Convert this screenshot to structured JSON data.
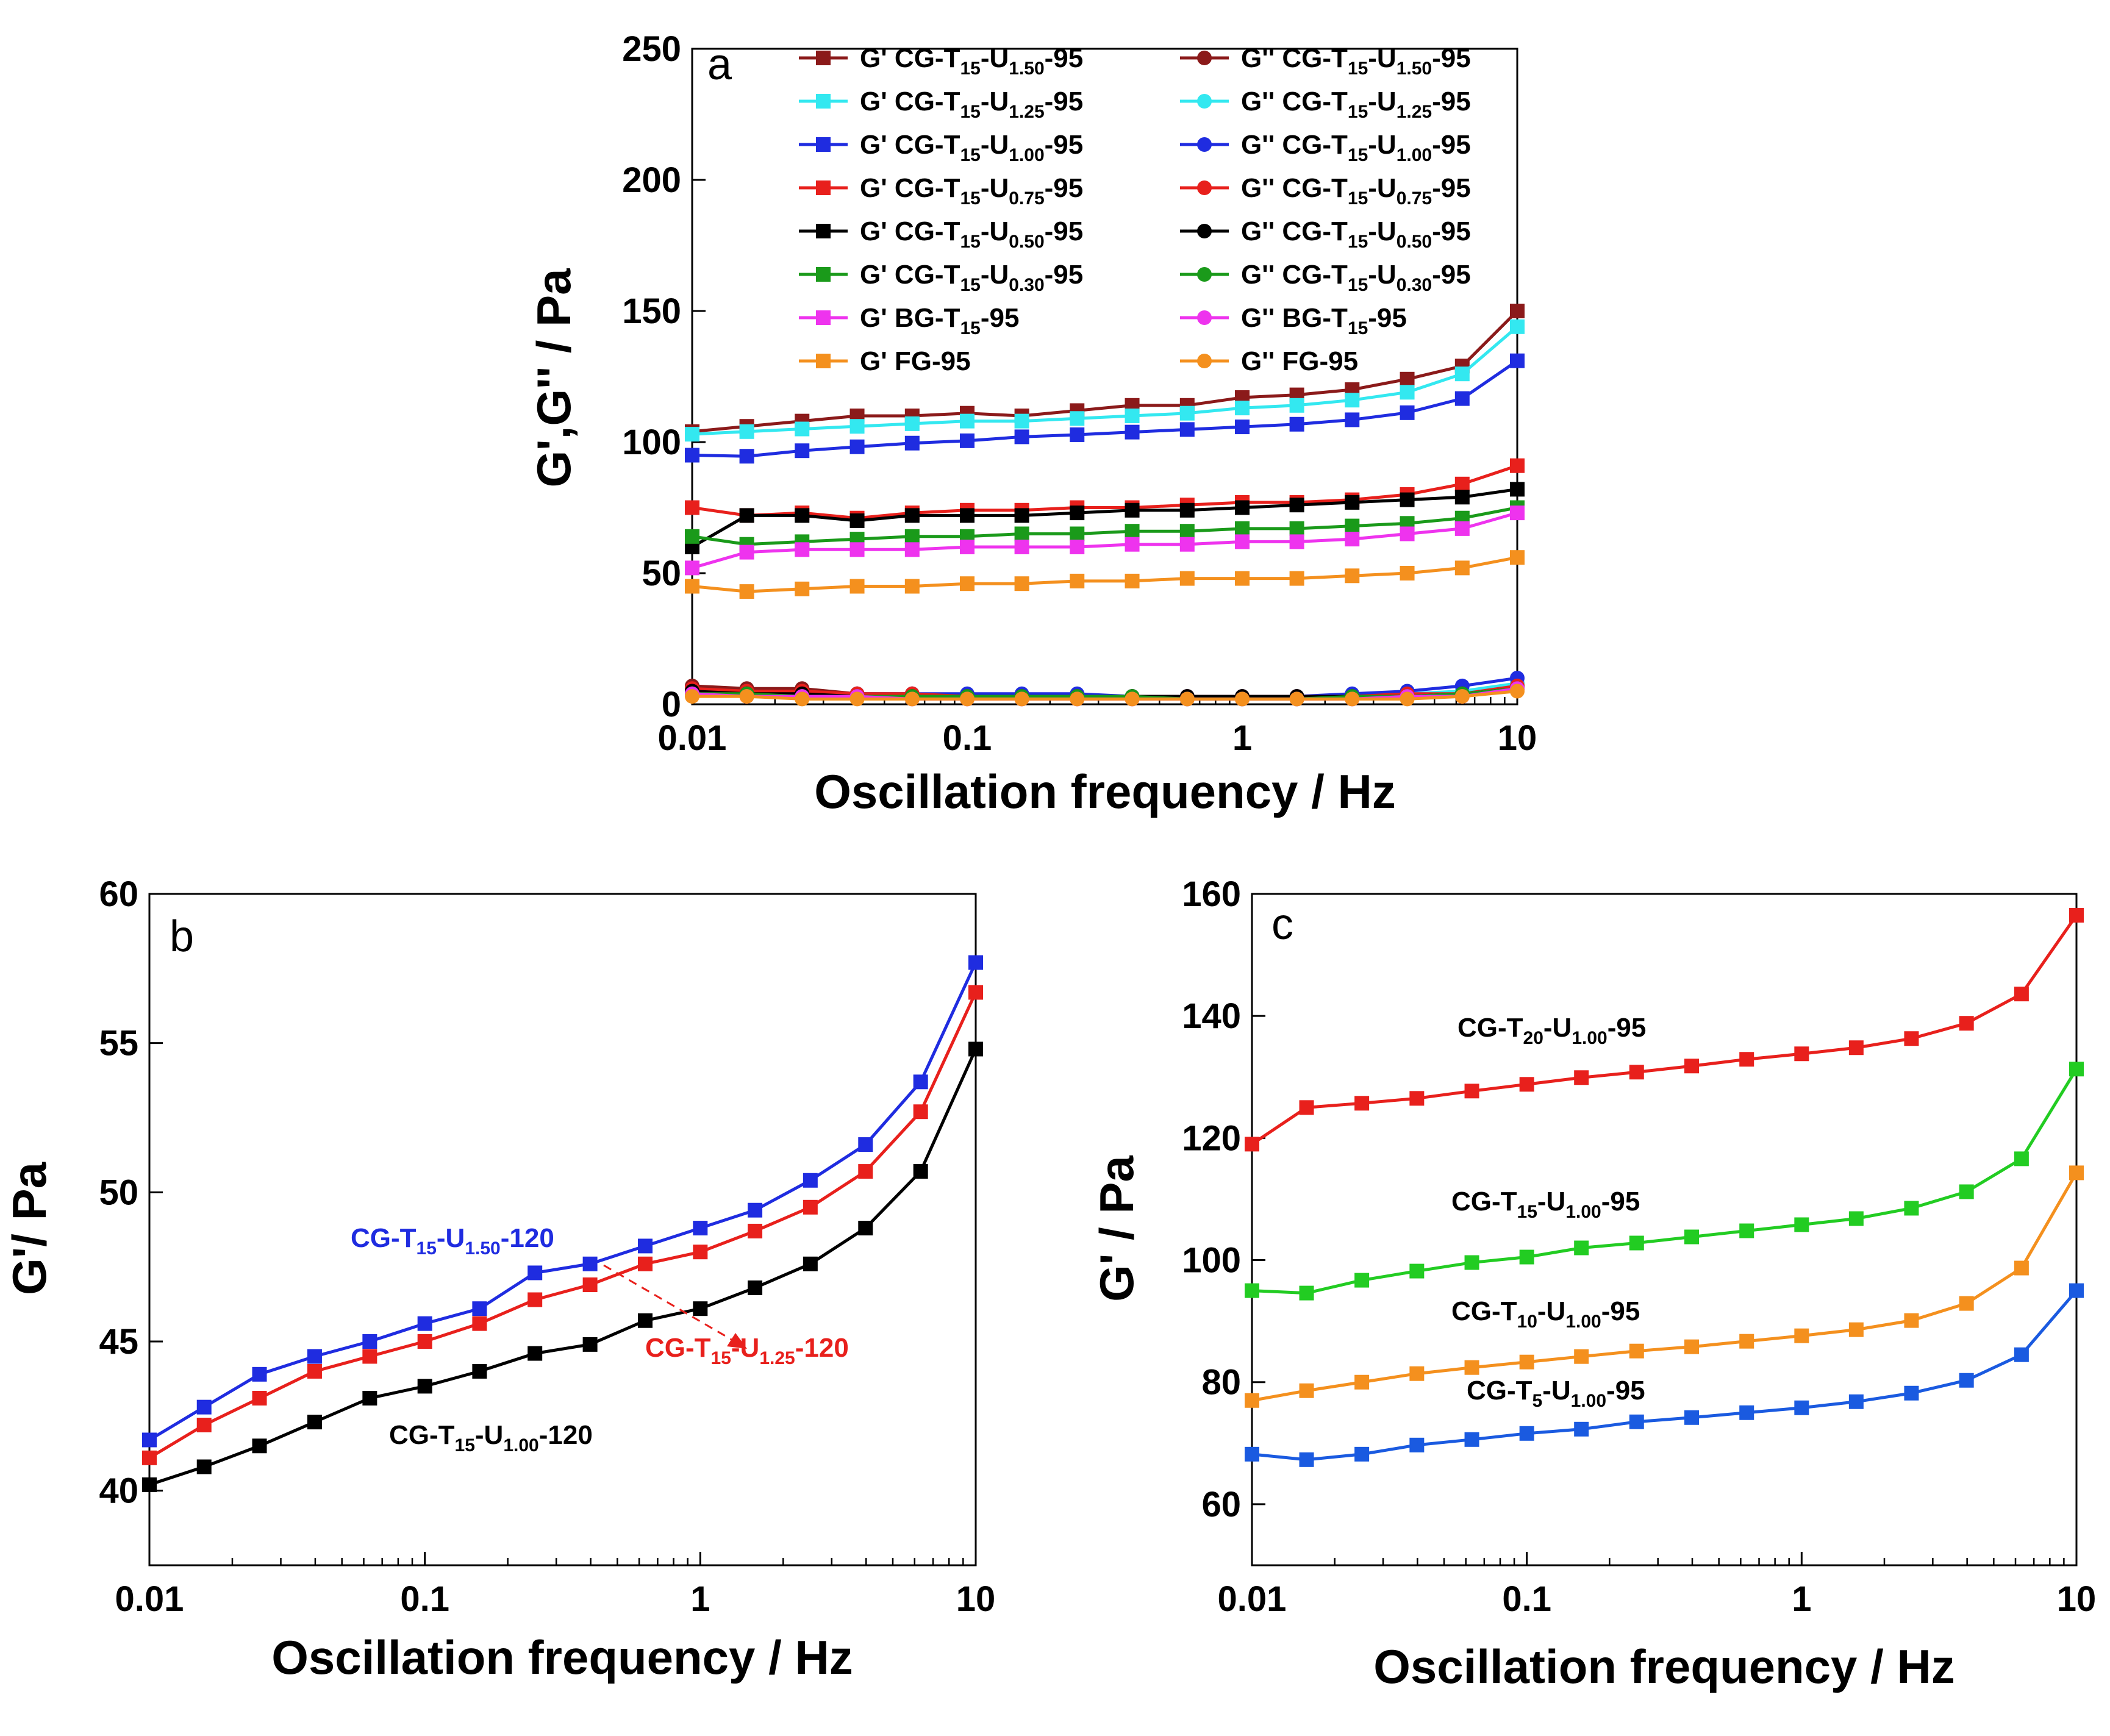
{
  "chart_data": [
    {
      "panel": "a",
      "type": "line",
      "x_scale": "log",
      "xlabel": "Oscillation frequency / Hz",
      "ylabel": "G',G'' / Pa",
      "xlim": [
        0.01,
        10
      ],
      "ylim": [
        0,
        250
      ],
      "x_ticks": [
        "0.01",
        "0.1",
        "1",
        "10"
      ],
      "y_ticks": [
        "0",
        "50",
        "100",
        "150",
        "200",
        "250"
      ],
      "x": [
        0.01,
        0.0158,
        0.0251,
        0.0398,
        0.0631,
        0.1,
        0.158,
        0.251,
        0.398,
        0.631,
        1,
        1.58,
        2.51,
        3.98,
        6.31,
        10
      ],
      "series": [
        {
          "name": "G'  CG-T15-U1.50-95",
          "label": [
            "G'  CG-T",
            "15",
            "-U",
            "1.50",
            "-95"
          ],
          "color": "#8b1a1a",
          "marker": "square",
          "values": [
            104,
            106,
            108,
            110,
            110,
            111,
            110,
            112,
            114,
            114,
            117,
            118,
            120,
            124,
            129,
            150
          ]
        },
        {
          "name": "G'  CG-T15-U1.25-95",
          "label": [
            "G'  CG-T",
            "15",
            "-U",
            "1.25",
            "-95"
          ],
          "color": "#33e8f0",
          "marker": "square",
          "values": [
            103,
            104,
            105,
            106,
            107,
            108,
            108,
            109,
            110,
            111,
            113,
            114,
            116,
            119,
            126,
            144
          ]
        },
        {
          "name": "G'  CG-T15-U1.00-95",
          "label": [
            "G'  CG-T",
            "15",
            "-U",
            "1.00",
            "-95"
          ],
          "color": "#1f2ce0",
          "marker": "square",
          "values": [
            95,
            94.6,
            96.7,
            98.2,
            99.6,
            100.5,
            102,
            102.8,
            103.8,
            104.8,
            105.8,
            106.8,
            108.5,
            111.2,
            116.6,
            131
          ]
        },
        {
          "name": "G'  CG-T15-U0.75-95",
          "label": [
            "G'  CG-T",
            "15",
            "-U",
            "0.75",
            "-95"
          ],
          "color": "#e8201c",
          "marker": "square",
          "values": [
            75,
            72,
            73,
            71,
            73,
            74,
            74,
            75,
            75,
            76,
            77,
            77,
            78,
            80,
            84,
            91
          ]
        },
        {
          "name": "G'  CG-T15-U0.50-95",
          "label": [
            "G'  CG-T",
            "15",
            "-U",
            "0.50",
            "-95"
          ],
          "color": "#000000",
          "marker": "square",
          "values": [
            60,
            72,
            72,
            70,
            72,
            72,
            72,
            73,
            74,
            74,
            75,
            76,
            77,
            78,
            79,
            82
          ]
        },
        {
          "name": "G'  CG-T15-U0.30-95",
          "label": [
            "G'  CG-T",
            "15",
            "-U",
            "0.30",
            "-95"
          ],
          "color": "#1a9a1a",
          "marker": "square",
          "values": [
            64,
            61,
            62,
            63,
            64,
            64,
            65,
            65,
            66,
            66,
            67,
            67,
            68,
            69,
            71,
            75
          ]
        },
        {
          "name": "G'  BG-T15-95",
          "label": [
            "G'  BG-T",
            "15",
            "-95",
            "",
            ""
          ],
          "color": "#ee33ee",
          "marker": "square",
          "values": [
            52,
            58,
            59,
            59,
            59,
            60,
            60,
            60,
            61,
            61,
            62,
            62,
            63,
            65,
            67,
            73
          ]
        },
        {
          "name": "G'  FG-95",
          "label": [
            "G'  FG-95",
            "",
            "",
            "",
            ""
          ],
          "color": "#f4901e",
          "marker": "square",
          "values": [
            45,
            43,
            44,
            45,
            45,
            46,
            46,
            47,
            47,
            48,
            48,
            48,
            49,
            50,
            52,
            56
          ]
        },
        {
          "name": "G''  CG-T15-U1.50-95",
          "label": [
            "G''  CG-T",
            "15",
            "-U",
            "1.50",
            "-95"
          ],
          "color": "#8b1a1a",
          "marker": "circle",
          "values": [
            7,
            6,
            6,
            4,
            4,
            3,
            3,
            3,
            3,
            3,
            3,
            3,
            3,
            4,
            4,
            8
          ]
        },
        {
          "name": "G''  CG-T15-U1.25-95",
          "label": [
            "G''  CG-T",
            "15",
            "-U",
            "1.25",
            "-95"
          ],
          "color": "#33e8f0",
          "marker": "circle",
          "values": [
            5,
            4,
            4,
            3,
            3,
            3,
            3,
            3,
            3,
            3,
            3,
            3,
            3,
            4,
            5,
            8
          ]
        },
        {
          "name": "G''  CG-T15-U1.00-95",
          "label": [
            "G''  CG-T",
            "15",
            "-U",
            "1.00",
            "-95"
          ],
          "color": "#1f2ce0",
          "marker": "circle",
          "values": [
            5,
            4,
            4,
            4,
            4,
            4,
            4,
            4,
            3,
            3,
            3,
            3,
            4,
            5,
            7,
            10
          ]
        },
        {
          "name": "G''  CG-T15-U0.75-95",
          "label": [
            "G''  CG-T",
            "15",
            "-U",
            "0.75",
            "-95"
          ],
          "color": "#e8201c",
          "marker": "circle",
          "values": [
            6,
            5,
            5,
            4,
            4,
            3,
            3,
            3,
            3,
            3,
            3,
            3,
            3,
            4,
            4,
            7
          ]
        },
        {
          "name": "G''  CG-T15-U0.50-95",
          "label": [
            "G''  CG-T",
            "15",
            "-U",
            "0.50",
            "-95"
          ],
          "color": "#000000",
          "marker": "circle",
          "values": [
            5,
            4,
            4,
            3,
            3,
            3,
            3,
            3,
            3,
            3,
            3,
            3,
            3,
            3,
            4,
            6
          ]
        },
        {
          "name": "G''  CG-T15-U0.30-95",
          "label": [
            "G''  CG-T",
            "15",
            "-U",
            "0.30",
            "-95"
          ],
          "color": "#1a9a1a",
          "marker": "circle",
          "values": [
            4,
            4,
            3,
            3,
            3,
            3,
            3,
            3,
            3,
            2,
            2,
            2,
            3,
            3,
            4,
            6
          ]
        },
        {
          "name": "G''  BG-T15-95",
          "label": [
            "G''  BG-T",
            "15",
            "-95",
            "",
            ""
          ],
          "color": "#ee33ee",
          "marker": "circle",
          "values": [
            4,
            3,
            3,
            3,
            2,
            2,
            2,
            2,
            2,
            2,
            2,
            2,
            2,
            3,
            3,
            6
          ]
        },
        {
          "name": "G''  FG-95",
          "label": [
            "G''  FG-95",
            "",
            "",
            "",
            ""
          ],
          "color": "#f4901e",
          "marker": "circle",
          "values": [
            3,
            3,
            2,
            2,
            2,
            2,
            2,
            2,
            2,
            2,
            2,
            2,
            2,
            2,
            3,
            5
          ]
        }
      ]
    },
    {
      "panel": "b",
      "type": "line",
      "x_scale": "log",
      "xlabel": "Oscillation frequency / Hz",
      "ylabel": "G'/ Pa",
      "xlim": [
        0.01,
        10
      ],
      "ylim": [
        37.5,
        60
      ],
      "x_ticks": [
        "0.01",
        "0.1",
        "1",
        "10"
      ],
      "y_ticks": [
        "40",
        "45",
        "50",
        "55",
        "60"
      ],
      "x": [
        0.01,
        0.0158,
        0.0251,
        0.0398,
        0.0631,
        0.1,
        0.158,
        0.251,
        0.398,
        0.631,
        1,
        1.58,
        2.51,
        3.98,
        6.31,
        10
      ],
      "series": [
        {
          "name": "CG-T15-U1.50-120",
          "label": [
            "CG-T",
            "15",
            "-U",
            "1.50",
            "-120"
          ],
          "color": "#1f2ce0",
          "marker": "square",
          "values": [
            41.7,
            42.8,
            43.9,
            44.5,
            45.0,
            45.6,
            46.1,
            47.3,
            47.6,
            48.2,
            48.8,
            49.4,
            50.4,
            51.6,
            53.7,
            57.7
          ]
        },
        {
          "name": "CG-T15-U1.25-120",
          "label": [
            "CG-T",
            "15",
            "-U",
            "1.25",
            "-120"
          ],
          "color": "#e8201c",
          "marker": "square",
          "values": [
            41.1,
            42.2,
            43.1,
            44.0,
            44.5,
            45.0,
            45.6,
            46.4,
            46.9,
            47.6,
            48.0,
            48.7,
            49.5,
            50.7,
            52.7,
            56.7
          ]
        },
        {
          "name": "CG-T15-U1.00-120",
          "label": [
            "CG-T",
            "15",
            "-U",
            "1.00",
            "-120"
          ],
          "color": "#000000",
          "marker": "square",
          "values": [
            40.2,
            40.8,
            41.5,
            42.3,
            43.1,
            43.5,
            44.0,
            44.6,
            44.9,
            45.7,
            46.1,
            46.8,
            47.6,
            48.8,
            50.7,
            54.8
          ]
        }
      ]
    },
    {
      "panel": "c",
      "type": "line",
      "x_scale": "log",
      "xlabel": "Oscillation frequency / Hz",
      "ylabel": "G' / Pa",
      "xlim": [
        0.01,
        10
      ],
      "ylim": [
        50,
        160
      ],
      "x_ticks": [
        "0.01",
        "0.1",
        "1",
        "10"
      ],
      "y_ticks": [
        "60",
        "80",
        "100",
        "120",
        "140",
        "160"
      ],
      "x": [
        0.01,
        0.0158,
        0.0251,
        0.0398,
        0.0631,
        0.1,
        0.158,
        0.251,
        0.398,
        0.631,
        1,
        1.58,
        2.51,
        3.98,
        6.31,
        10
      ],
      "series": [
        {
          "name": "CG-T20-U1.00-95",
          "label": [
            "CG-T",
            "20",
            "-U",
            "1.00",
            "-95"
          ],
          "color": "#e8201c",
          "marker": "square",
          "values": [
            119,
            125,
            125.7,
            126.5,
            127.7,
            128.8,
            129.9,
            130.8,
            131.8,
            132.9,
            133.8,
            134.8,
            136.3,
            138.8,
            143.6,
            156.5
          ]
        },
        {
          "name": "CG-T15-U1.00-95",
          "label": [
            "CG-T",
            "15",
            "-U",
            "1.00",
            "-95"
          ],
          "color": "#22cc22",
          "marker": "square",
          "values": [
            95,
            94.6,
            96.7,
            98.2,
            99.6,
            100.5,
            102,
            102.8,
            103.8,
            104.8,
            105.8,
            106.8,
            108.5,
            111.2,
            116.6,
            131.3
          ]
        },
        {
          "name": "CG-T10-U1.00-95",
          "label": [
            "CG-T",
            "10",
            "-U",
            "1.00",
            "-95"
          ],
          "color": "#f4901e",
          "marker": "square",
          "values": [
            77,
            78.6,
            80,
            81.4,
            82.4,
            83.3,
            84.2,
            85.1,
            85.8,
            86.7,
            87.6,
            88.6,
            90.1,
            92.9,
            98.7,
            114.3
          ]
        },
        {
          "name": "CG-T5-U1.00-95",
          "label": [
            "CG-T",
            "5",
            "-U",
            "1.00",
            "-95"
          ],
          "color": "#1a5ae0",
          "marker": "square",
          "values": [
            68.2,
            67.3,
            68.2,
            69.7,
            70.6,
            71.6,
            72.3,
            73.5,
            74.2,
            75.0,
            75.8,
            76.8,
            78.2,
            80.3,
            84.5,
            95.0
          ]
        }
      ]
    }
  ]
}
